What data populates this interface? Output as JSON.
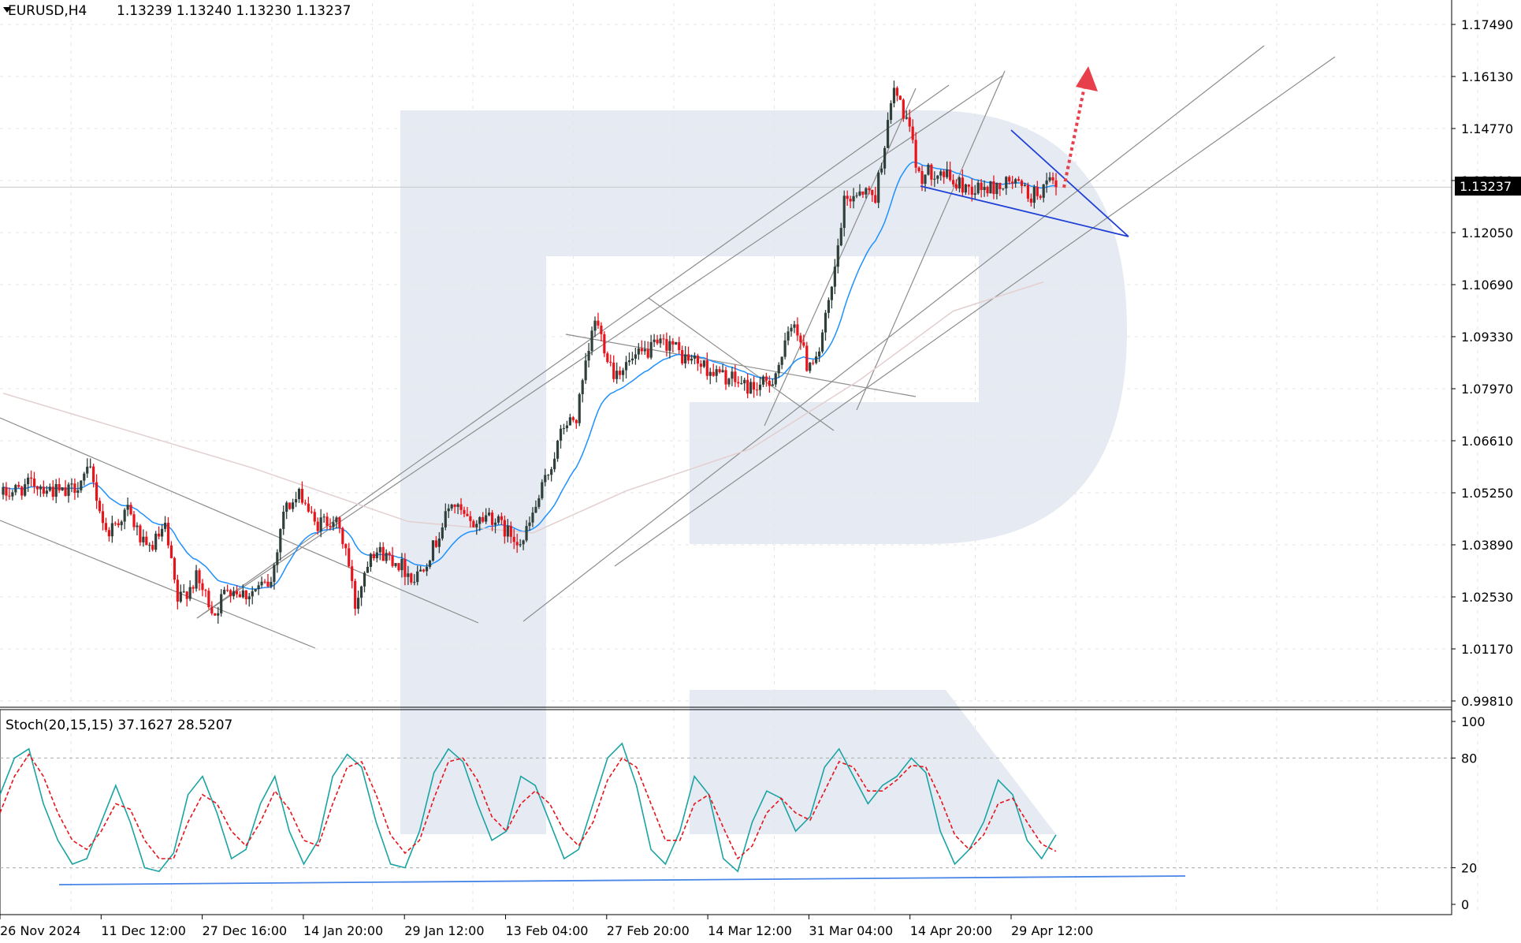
{
  "header": {
    "symbol": "EURUSD,H4",
    "ohlc": "1.13239 1.13240 1.13230 1.13237"
  },
  "indicator": {
    "label": "Stoch(20,15,15) 37.1627 28.5207",
    "ticks": [
      "100",
      "80",
      "20",
      "0"
    ]
  },
  "price_badge": "1.13237",
  "colors": {
    "bull": "#2f3f3a",
    "bear": "#e8141c",
    "ma_fast": "#1e90ff",
    "ma_slow": "#e3cfcf",
    "channel": "#8c8c8c",
    "triangle": "#1f3fd6",
    "arrow": "#e8404a",
    "stoch_main": "#1aa3a3",
    "stoch_signal": "#e8141c",
    "stoch_support": "#4a86e8",
    "grid": "#e5e5e5",
    "watermark": "#e6ebf3"
  },
  "chart_data": {
    "type": "candlestick",
    "symbol": "EURUSD",
    "timeframe": "H4",
    "y_ticks": [
      "1.17490",
      "1.16130",
      "1.14770",
      "1.13410",
      "1.12050",
      "1.10690",
      "1.09330",
      "1.07970",
      "1.06610",
      "1.05250",
      "1.03890",
      "1.02530",
      "1.01170",
      "0.99810"
    ],
    "ylim": [
      0.9981,
      1.1749
    ],
    "x_ticks": [
      "26 Nov 2024",
      "11 Dec 12:00",
      "27 Dec 16:00",
      "14 Jan 20:00",
      "29 Jan 12:00",
      "13 Feb 04:00",
      "27 Feb 20:00",
      "14 Mar 12:00",
      "31 Mar 04:00",
      "14 Apr 20:00",
      "29 Apr 12:00"
    ],
    "price_path": [
      [
        0,
        1.052
      ],
      [
        10,
        1.055
      ],
      [
        20,
        1.052
      ],
      [
        28,
        1.058
      ],
      [
        33,
        1.042
      ],
      [
        40,
        1.048
      ],
      [
        46,
        1.037
      ],
      [
        52,
        1.043
      ],
      [
        56,
        1.024
      ],
      [
        62,
        1.03
      ],
      [
        68,
        1.021
      ],
      [
        72,
        1.028
      ],
      [
        78,
        1.026
      ],
      [
        86,
        1.029
      ],
      [
        90,
        1.048
      ],
      [
        96,
        1.052
      ],
      [
        100,
        1.044
      ],
      [
        106,
        1.046
      ],
      [
        110,
        1.038
      ],
      [
        113,
        1.023
      ],
      [
        118,
        1.038
      ],
      [
        126,
        1.035
      ],
      [
        132,
        1.03
      ],
      [
        138,
        1.038
      ],
      [
        144,
        1.05
      ],
      [
        150,
        1.044
      ],
      [
        156,
        1.047
      ],
      [
        162,
        1.042
      ],
      [
        167,
        1.04
      ],
      [
        172,
        1.051
      ],
      [
        176,
        1.06
      ],
      [
        180,
        1.07
      ],
      [
        184,
        1.072
      ],
      [
        190,
        1.098
      ],
      [
        196,
        1.084
      ],
      [
        202,
        1.087
      ],
      [
        208,
        1.09
      ],
      [
        214,
        1.092
      ],
      [
        218,
        1.088
      ],
      [
        222,
        1.087
      ],
      [
        228,
        1.084
      ],
      [
        234,
        1.082
      ],
      [
        240,
        1.08
      ],
      [
        246,
        1.081
      ],
      [
        250,
        1.088
      ],
      [
        254,
        1.098
      ],
      [
        258,
        1.086
      ],
      [
        262,
        1.09
      ],
      [
        266,
        1.105
      ],
      [
        270,
        1.128
      ],
      [
        275,
        1.132
      ],
      [
        280,
        1.13
      ],
      [
        286,
        1.158
      ],
      [
        290,
        1.15
      ],
      [
        294,
        1.135
      ],
      [
        300,
        1.137
      ],
      [
        306,
        1.133
      ],
      [
        312,
        1.132
      ],
      [
        318,
        1.132
      ],
      [
        324,
        1.134
      ],
      [
        330,
        1.13
      ],
      [
        336,
        1.133
      ],
      [
        338,
        1.1324
      ]
    ],
    "stochastic": {
      "period": "20,15,15",
      "main_last": 37.1627,
      "signal_last": 28.5207,
      "ylim": [
        0,
        100
      ],
      "levels": [
        80,
        20
      ],
      "main": [
        60,
        80,
        85,
        55,
        35,
        22,
        25,
        45,
        65,
        45,
        20,
        18,
        28,
        60,
        70,
        50,
        25,
        30,
        55,
        70,
        40,
        22,
        35,
        70,
        82,
        75,
        45,
        22,
        20,
        40,
        72,
        85,
        78,
        55,
        35,
        40,
        70,
        65,
        45,
        25,
        30,
        55,
        80,
        88,
        65,
        30,
        22,
        40,
        70,
        60,
        25,
        18,
        45,
        62,
        58,
        40,
        48,
        75,
        85,
        70,
        55,
        65,
        70,
        80,
        72,
        40,
        22,
        30,
        45,
        68,
        60,
        35,
        25,
        38
      ],
      "signal": [
        50,
        70,
        82,
        70,
        50,
        35,
        30,
        40,
        55,
        52,
        35,
        25,
        25,
        45,
        60,
        55,
        40,
        32,
        45,
        62,
        52,
        35,
        32,
        55,
        75,
        78,
        60,
        38,
        28,
        35,
        58,
        78,
        80,
        68,
        48,
        40,
        55,
        62,
        55,
        40,
        32,
        45,
        68,
        80,
        75,
        55,
        35,
        35,
        55,
        60,
        42,
        25,
        32,
        50,
        58,
        50,
        46,
        62,
        78,
        75,
        62,
        62,
        68,
        76,
        75,
        58,
        38,
        30,
        38,
        55,
        58,
        45,
        33,
        29
      ]
    },
    "annotations": [
      "price channels",
      "symmetrical triangle",
      "dotted upward arrow"
    ]
  }
}
